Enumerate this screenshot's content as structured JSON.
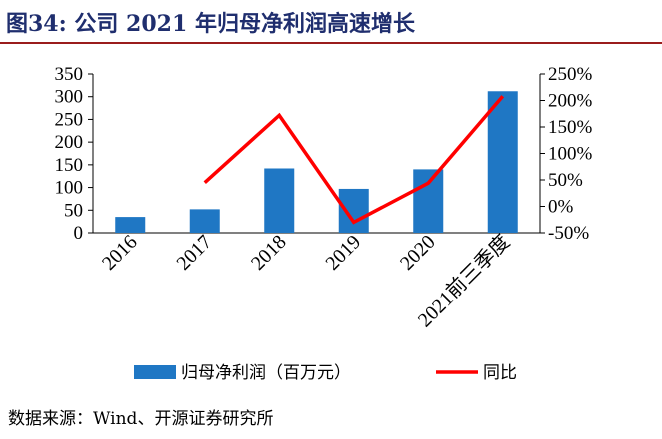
{
  "figure": {
    "title": "图34:  公司 2021 年归母净利润高速增长",
    "source": "数据来源：Wind、开源证券研究所"
  },
  "colors": {
    "bar": "#1f77c4",
    "line": "#ff0000",
    "title": "#1f2e6e",
    "rule": "#9a1c1c"
  },
  "chart_data": {
    "type": "bar",
    "categories": [
      "2016",
      "2017",
      "2018",
      "2019",
      "2020",
      "2021前三季度"
    ],
    "series": [
      {
        "name": "归母净利润（百万元）",
        "type": "bar",
        "axis": "left",
        "values": [
          35,
          52,
          142,
          97,
          140,
          312
        ]
      },
      {
        "name": "同比",
        "type": "line",
        "axis": "right",
        "values": [
          null,
          45,
          172,
          -30,
          44,
          208
        ]
      }
    ],
    "y_left": {
      "min": 0,
      "max": 350,
      "step": 50,
      "ticks": [
        "0",
        "50",
        "100",
        "150",
        "200",
        "250",
        "300",
        "350"
      ]
    },
    "y_right": {
      "min": -50,
      "max": 250,
      "step": 50,
      "ticks": [
        "-50%",
        "0%",
        "50%",
        "100%",
        "150%",
        "200%",
        "250%"
      ]
    },
    "grid": false,
    "legend_position": "bottom"
  }
}
